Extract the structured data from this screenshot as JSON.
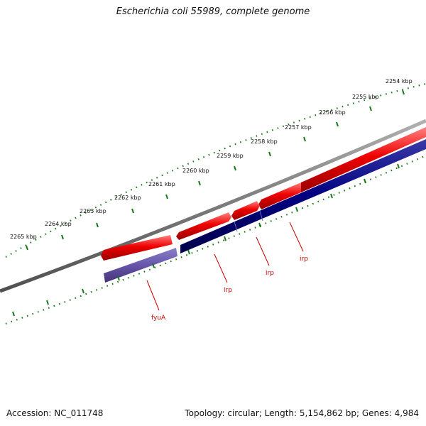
{
  "title": "Escherichia coli 55989, complete genome",
  "footer": {
    "accession": "Accession: NC_011748",
    "summary": "Topology: circular; Length: 5,154,862 bp; Genes: 4,984"
  },
  "ruler": {
    "unit": "kbp",
    "labels": [
      "2254 kbp",
      "2255 kbp",
      "2256 kbp",
      "2257 kbp",
      "2258 kbp",
      "2259 kbp",
      "2260 kbp",
      "2261 kbp",
      "2262 kbp",
      "2263 kbp",
      "2264 kbp",
      "2265 kbp"
    ]
  },
  "genes": [
    {
      "name": "fyuA",
      "strand": "reverse",
      "color": "#6655aa"
    },
    {
      "name": "irp",
      "strand": "reverse",
      "color": "#000080"
    },
    {
      "name": "irp",
      "strand": "reverse",
      "color": "#000080"
    },
    {
      "name": "irp",
      "strand": "reverse",
      "color": "#000080"
    }
  ],
  "colors": {
    "forward_feature": "#ee0000",
    "reverse_feature": "#000080",
    "backbone": "#808080",
    "ruler_ticks": "#1a7a1a",
    "gene_label": "#cc0000"
  }
}
